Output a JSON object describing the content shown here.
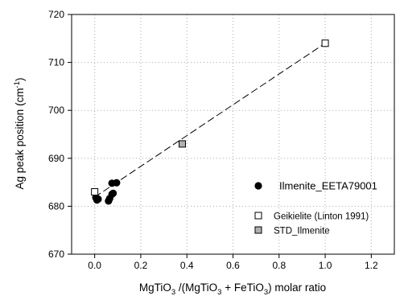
{
  "chart_data": {
    "type": "scatter",
    "xlabel": {
      "main": "MgTiO",
      "sub1": "3",
      "mid": " /(MgTiO",
      "sub2": "3",
      "mid2": " + FeTiO",
      "sub3": "3",
      "tail": ")  molar ratio"
    },
    "ylabel": {
      "main": "Ag peak position (cm",
      "sup": "-1",
      "tail": ")"
    },
    "xlim": [
      -0.1,
      1.3
    ],
    "ylim": [
      670,
      720
    ],
    "xticks": [
      0.0,
      0.2,
      0.4,
      0.6,
      0.8,
      1.0,
      1.2
    ],
    "xtick_labels": [
      "0.0",
      "0.2",
      "0.4",
      "0.6",
      "0.8",
      "1.0",
      "1.2"
    ],
    "yticks": [
      670,
      680,
      690,
      700,
      710,
      720
    ],
    "ytick_labels": [
      "670",
      "680",
      "690",
      "700",
      "710",
      "720"
    ],
    "grid": "dotted",
    "legend_position": "bottom-right",
    "series": [
      {
        "name": "Ilmenite_EETA79001",
        "marker": "filled-circle",
        "color": "#000000",
        "points": [
          {
            "x": 0.005,
            "y": 681.8
          },
          {
            "x": 0.01,
            "y": 681.3
          },
          {
            "x": 0.015,
            "y": 681.5
          },
          {
            "x": 0.06,
            "y": 681.1
          },
          {
            "x": 0.065,
            "y": 681.6
          },
          {
            "x": 0.075,
            "y": 682.5
          },
          {
            "x": 0.08,
            "y": 682.7
          },
          {
            "x": 0.075,
            "y": 684.8
          },
          {
            "x": 0.095,
            "y": 684.9
          }
        ]
      },
      {
        "name": "Geikielite (Linton 1991)",
        "marker": "open-square",
        "color": "#ffffff",
        "points": [
          {
            "x": 0.0,
            "y": 683.0
          },
          {
            "x": 1.0,
            "y": 714.0
          }
        ]
      },
      {
        "name": "STD_Ilmenite",
        "marker": "gray-square",
        "color": "#b0b0b0",
        "points": [
          {
            "x": 0.38,
            "y": 693.0
          }
        ]
      }
    ],
    "fit_line": {
      "style": "dashed",
      "from": {
        "x": 0.0,
        "y": 681.9
      },
      "to": {
        "x": 1.0,
        "y": 714.0
      }
    }
  }
}
